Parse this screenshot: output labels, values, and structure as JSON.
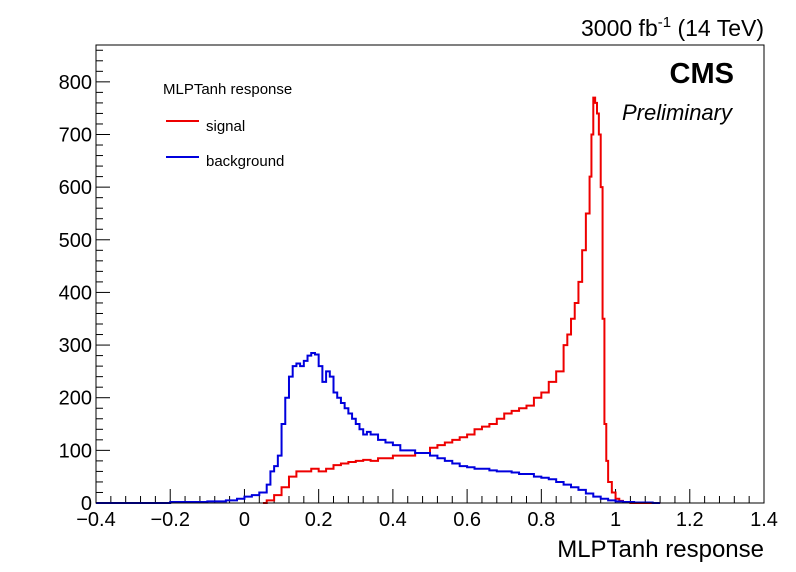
{
  "chart_data": {
    "type": "line",
    "title": "",
    "top_label": "3000 fb",
    "top_label_exp": "-1",
    "top_label_suffix": " (14 TeV)",
    "experiment": "CMS",
    "status": "Preliminary",
    "xlabel": "MLPTanh response",
    "ylabel": "",
    "xlim": [
      -0.4,
      1.4
    ],
    "ylim": [
      0,
      870
    ],
    "x_ticks": [
      -0.4,
      -0.2,
      0,
      0.2,
      0.4,
      0.6,
      0.8,
      1,
      1.2,
      1.4
    ],
    "x_tick_labels": [
      "−0.4",
      "−0.2",
      "0",
      "0.2",
      "0.4",
      "0.6",
      "0.8",
      "1",
      "1.2",
      "1.4"
    ],
    "y_ticks": [
      0,
      100,
      200,
      300,
      400,
      500,
      600,
      700,
      800
    ],
    "y_tick_labels": [
      "0",
      "100",
      "200",
      "300",
      "400",
      "500",
      "600",
      "700",
      "800"
    ],
    "grid": false,
    "legend": {
      "title": "MLPTanh response",
      "placement": "top-left"
    },
    "series": [
      {
        "name": "signal",
        "color": "#ee0000",
        "x": [
          0.05,
          0.06,
          0.08,
          0.1,
          0.12,
          0.14,
          0.16,
          0.18,
          0.2,
          0.22,
          0.24,
          0.26,
          0.28,
          0.3,
          0.32,
          0.34,
          0.36,
          0.38,
          0.4,
          0.42,
          0.44,
          0.46,
          0.48,
          0.5,
          0.52,
          0.54,
          0.56,
          0.58,
          0.6,
          0.62,
          0.64,
          0.66,
          0.68,
          0.7,
          0.72,
          0.74,
          0.76,
          0.78,
          0.8,
          0.82,
          0.84,
          0.86,
          0.87,
          0.88,
          0.89,
          0.9,
          0.91,
          0.92,
          0.93,
          0.935,
          0.94,
          0.945,
          0.95,
          0.955,
          0.96,
          0.965,
          0.97,
          0.975,
          0.98,
          0.99,
          1.0,
          1.01,
          1.02,
          1.03,
          1.04,
          1.06,
          1.1
        ],
        "values": [
          0,
          5,
          15,
          30,
          50,
          60,
          60,
          65,
          60,
          65,
          72,
          75,
          78,
          80,
          82,
          80,
          85,
          85,
          90,
          90,
          90,
          95,
          95,
          105,
          110,
          115,
          120,
          125,
          130,
          140,
          145,
          150,
          160,
          170,
          175,
          180,
          185,
          200,
          210,
          230,
          250,
          300,
          320,
          350,
          380,
          420,
          480,
          550,
          620,
          700,
          770,
          760,
          740,
          700,
          600,
          350,
          150,
          80,
          40,
          20,
          8,
          4,
          2,
          1,
          0,
          0,
          0
        ]
      },
      {
        "name": "background",
        "color": "#0000dd",
        "x": [
          -0.4,
          -0.3,
          -0.2,
          -0.1,
          -0.05,
          -0.02,
          0.0,
          0.02,
          0.04,
          0.06,
          0.07,
          0.08,
          0.09,
          0.1,
          0.11,
          0.12,
          0.13,
          0.14,
          0.15,
          0.16,
          0.17,
          0.18,
          0.19,
          0.2,
          0.21,
          0.22,
          0.23,
          0.24,
          0.25,
          0.26,
          0.27,
          0.28,
          0.29,
          0.3,
          0.31,
          0.32,
          0.33,
          0.34,
          0.35,
          0.36,
          0.38,
          0.4,
          0.42,
          0.44,
          0.46,
          0.48,
          0.5,
          0.52,
          0.54,
          0.56,
          0.58,
          0.6,
          0.62,
          0.64,
          0.66,
          0.68,
          0.7,
          0.72,
          0.74,
          0.76,
          0.78,
          0.8,
          0.82,
          0.84,
          0.86,
          0.88,
          0.9,
          0.92,
          0.94,
          0.96,
          0.98,
          1.0,
          1.02,
          1.05,
          1.1
        ],
        "values": [
          0,
          0,
          2,
          3,
          5,
          8,
          12,
          15,
          20,
          35,
          60,
          70,
          90,
          150,
          200,
          240,
          260,
          265,
          260,
          270,
          280,
          285,
          282,
          260,
          230,
          250,
          240,
          210,
          200,
          190,
          180,
          170,
          160,
          150,
          140,
          130,
          135,
          130,
          130,
          120,
          115,
          110,
          100,
          100,
          95,
          95,
          90,
          85,
          80,
          75,
          70,
          68,
          65,
          65,
          62,
          60,
          60,
          58,
          55,
          55,
          50,
          48,
          45,
          40,
          35,
          30,
          25,
          18,
          12,
          8,
          5,
          3,
          2,
          1,
          0
        ]
      }
    ]
  }
}
